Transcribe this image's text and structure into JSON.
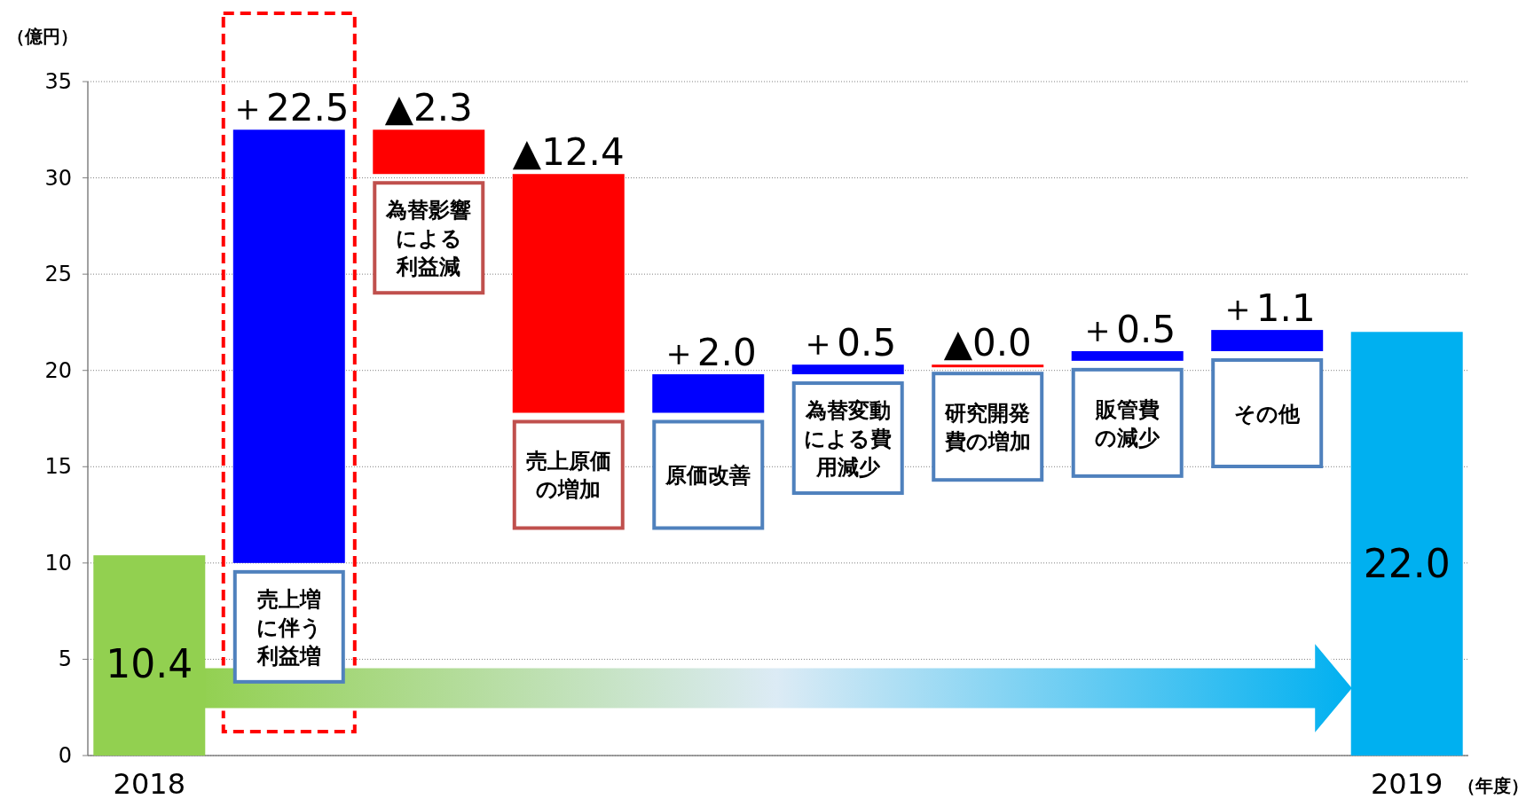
{
  "chart_data": {
    "type": "bar",
    "categories": [
      "2018",
      null,
      null,
      null,
      null,
      null,
      null,
      null,
      null,
      "2019"
    ],
    "values": [
      10.4,
      22.5,
      -2.3,
      -12.4,
      2.0,
      0.5,
      0.0,
      0.5,
      1.1,
      22.0
    ],
    "base": [
      0,
      10.0,
      32.5,
      30.2,
      17.8,
      19.8,
      20.3,
      20.5,
      21.0,
      0
    ],
    "colors": [
      "#92d050",
      "#0000ff",
      "#ff0000",
      "#ff0000",
      "#0000ff",
      "#0000ff",
      "#ff0000",
      "#0000ff",
      "#0000ff",
      "#00b0f0"
    ],
    "value_labels": [
      "10.4",
      "＋22.5",
      "▲2.3",
      "▲12.4",
      "＋2.0",
      "＋0.5",
      "▲0.0",
      "＋0.5",
      "＋1.1",
      "22.0"
    ],
    "annotations": [
      "売上増に伴う利益増",
      "為替影響による利益減",
      "売上原価の増加",
      "原価改善",
      "為替変動による費用減少",
      "研究開発費の増加",
      "販管費の減少",
      "その他"
    ],
    "ylabel": "（億円）",
    "xlabel": "（年度）",
    "ylim": [
      0,
      35
    ],
    "yticks": [
      0,
      5,
      10,
      15,
      20,
      25,
      30,
      35
    ],
    "grid": "y"
  }
}
